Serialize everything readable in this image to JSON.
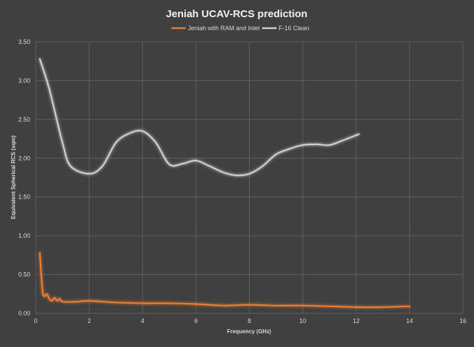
{
  "chart_data": {
    "type": "line",
    "title": "Jeniah UCAV-RCS prediction",
    "xlabel": "Frequency (GHz)",
    "ylabel": "Equivalent Spherical RCS (sqm)",
    "xlim": [
      0,
      16
    ],
    "ylim": [
      0,
      3.5
    ],
    "x_ticks": [
      "0",
      "2",
      "4",
      "6",
      "8",
      "10",
      "12",
      "14",
      "16"
    ],
    "y_ticks": [
      "0.00",
      "0.50",
      "1.00",
      "1.50",
      "2.00",
      "2.50",
      "3.00",
      "3.50"
    ],
    "grid": true,
    "legend_position": "top",
    "series": [
      {
        "name": "Jeniah with RAM and Inlet",
        "color": "#ed7d31",
        "points": [
          [
            0.15,
            0.78
          ],
          [
            0.25,
            0.3
          ],
          [
            0.32,
            0.22
          ],
          [
            0.42,
            0.25
          ],
          [
            0.5,
            0.19
          ],
          [
            0.6,
            0.16
          ],
          [
            0.7,
            0.2
          ],
          [
            0.8,
            0.16
          ],
          [
            0.9,
            0.19
          ],
          [
            1.0,
            0.15
          ],
          [
            1.5,
            0.15
          ],
          [
            2.0,
            0.16
          ],
          [
            3.0,
            0.14
          ],
          [
            4.0,
            0.13
          ],
          [
            5.0,
            0.13
          ],
          [
            6.0,
            0.12
          ],
          [
            7.0,
            0.1
          ],
          [
            8.0,
            0.11
          ],
          [
            9.0,
            0.1
          ],
          [
            10.0,
            0.1
          ],
          [
            11.0,
            0.09
          ],
          [
            12.0,
            0.08
          ],
          [
            13.0,
            0.08
          ],
          [
            14.0,
            0.09
          ]
        ]
      },
      {
        "name": "F-16 Clean",
        "color": "#d0d0d0",
        "points": [
          [
            0.15,
            3.28
          ],
          [
            0.5,
            2.9
          ],
          [
            1.0,
            2.2
          ],
          [
            1.3,
            1.9
          ],
          [
            2.0,
            1.8
          ],
          [
            2.5,
            1.9
          ],
          [
            3.0,
            2.2
          ],
          [
            3.5,
            2.32
          ],
          [
            4.0,
            2.35
          ],
          [
            4.5,
            2.2
          ],
          [
            5.0,
            1.92
          ],
          [
            5.5,
            1.93
          ],
          [
            6.0,
            1.97
          ],
          [
            6.5,
            1.9
          ],
          [
            7.0,
            1.82
          ],
          [
            7.5,
            1.78
          ],
          [
            8.0,
            1.8
          ],
          [
            8.5,
            1.9
          ],
          [
            9.0,
            2.05
          ],
          [
            9.5,
            2.12
          ],
          [
            10.0,
            2.17
          ],
          [
            10.5,
            2.18
          ],
          [
            11.0,
            2.17
          ],
          [
            11.5,
            2.23
          ],
          [
            12.1,
            2.31
          ]
        ]
      }
    ]
  }
}
